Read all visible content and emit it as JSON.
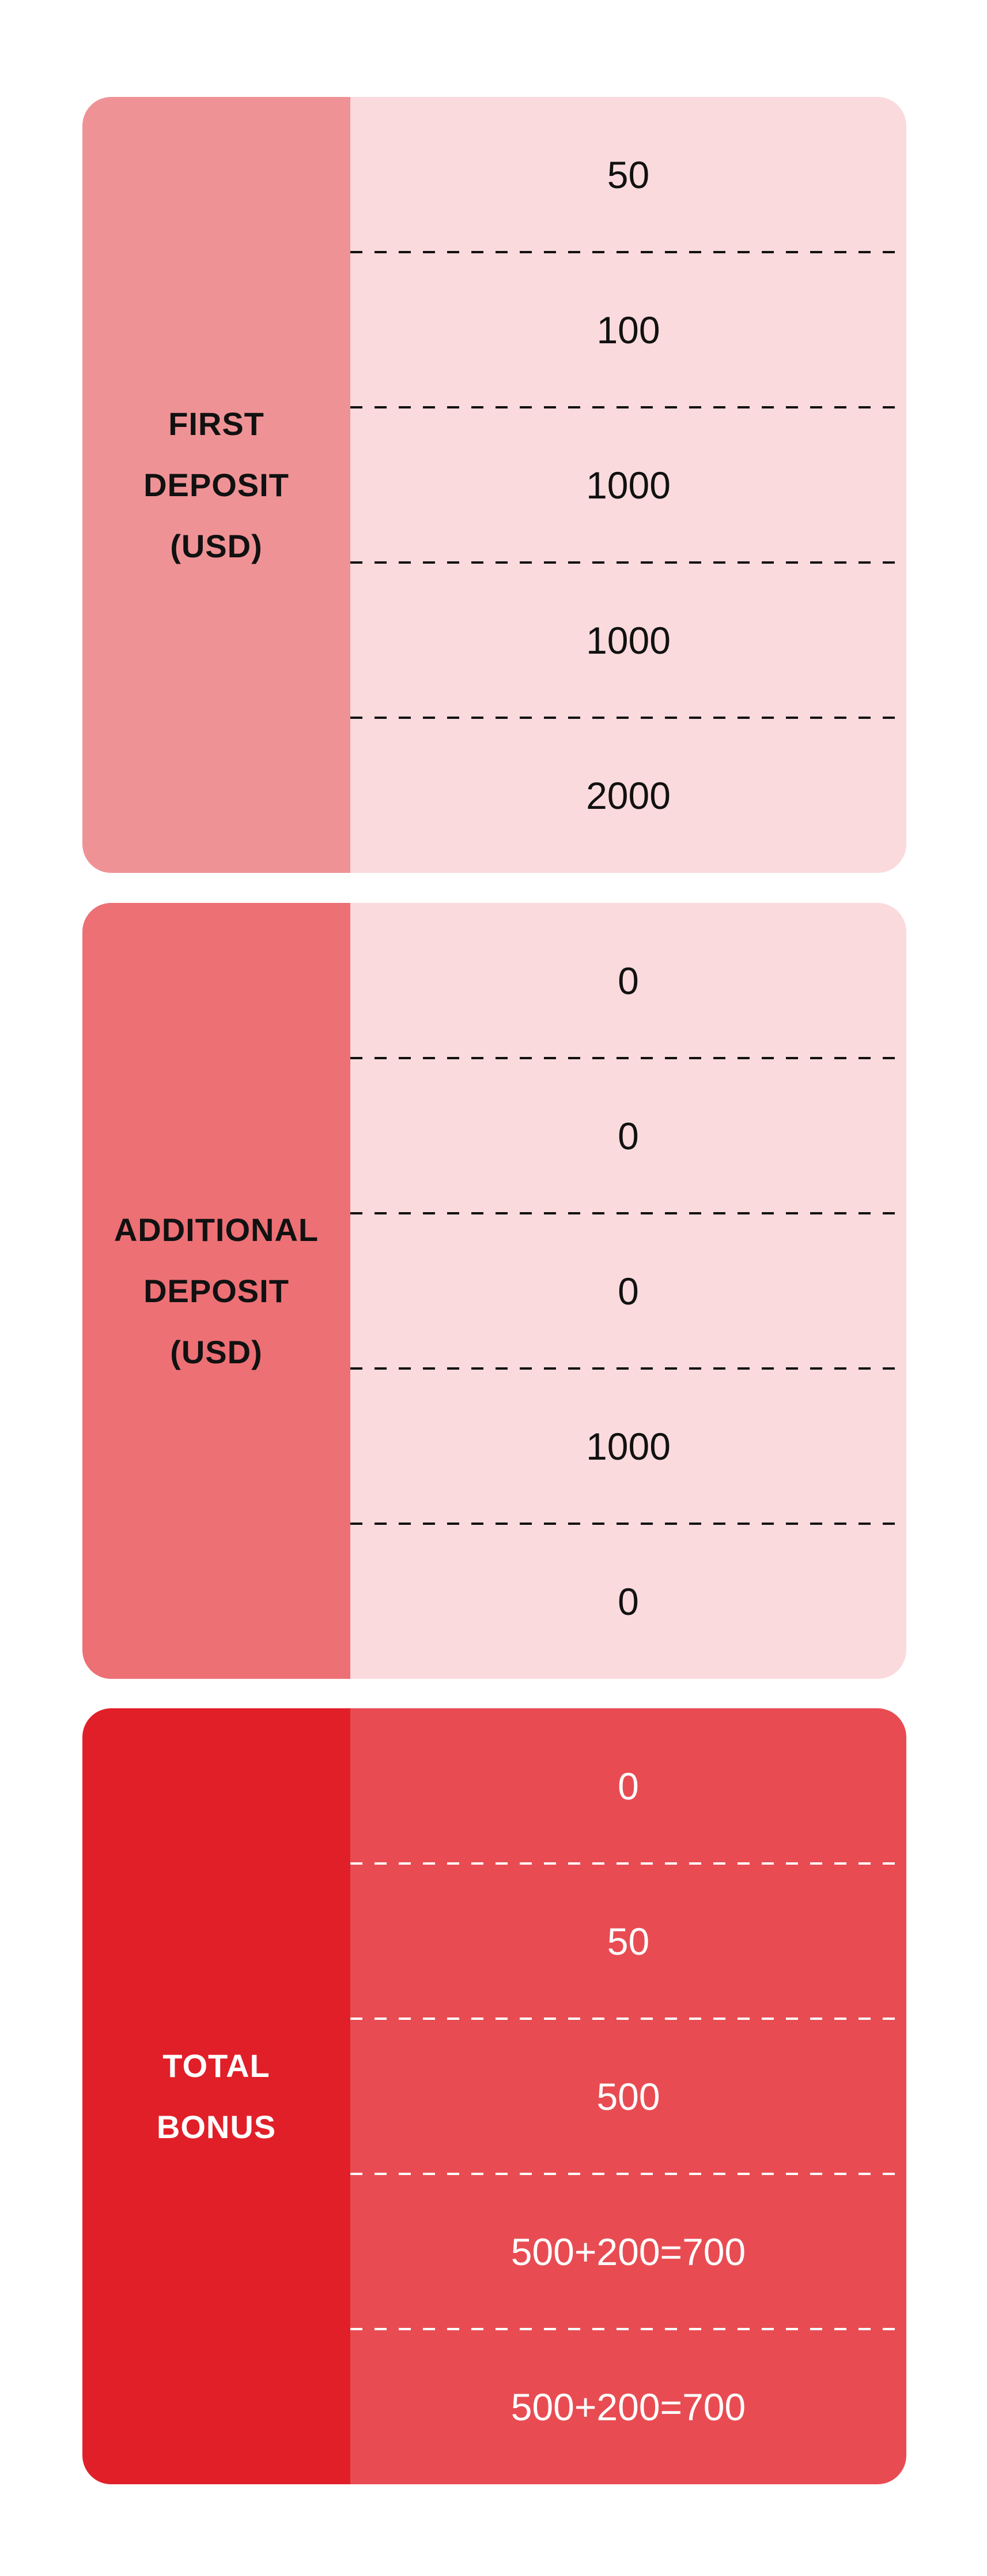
{
  "colors": {
    "first_label_bg": "#ef9296",
    "additional_label_bg": "#ed7075",
    "bonus_label_bg": "#e11f28",
    "light_values_bg": "#fbdadd",
    "bonus_values_bg": "#e84c52"
  },
  "first_deposit": {
    "label_lines": [
      "FIRST",
      "DEPOSIT",
      "(USD)"
    ],
    "values": [
      "50",
      "100",
      "1000",
      "1000",
      "2000"
    ]
  },
  "additional_deposit": {
    "label_lines": [
      "ADDITIONAL",
      "DEPOSIT",
      "(USD)"
    ],
    "values": [
      "0",
      "0",
      "0",
      "1000",
      "0"
    ]
  },
  "total_bonus": {
    "label_lines": [
      "TOTAL",
      "BONUS"
    ],
    "values": [
      "0",
      "50",
      "500",
      "500+200=700",
      "500+200=700"
    ]
  }
}
